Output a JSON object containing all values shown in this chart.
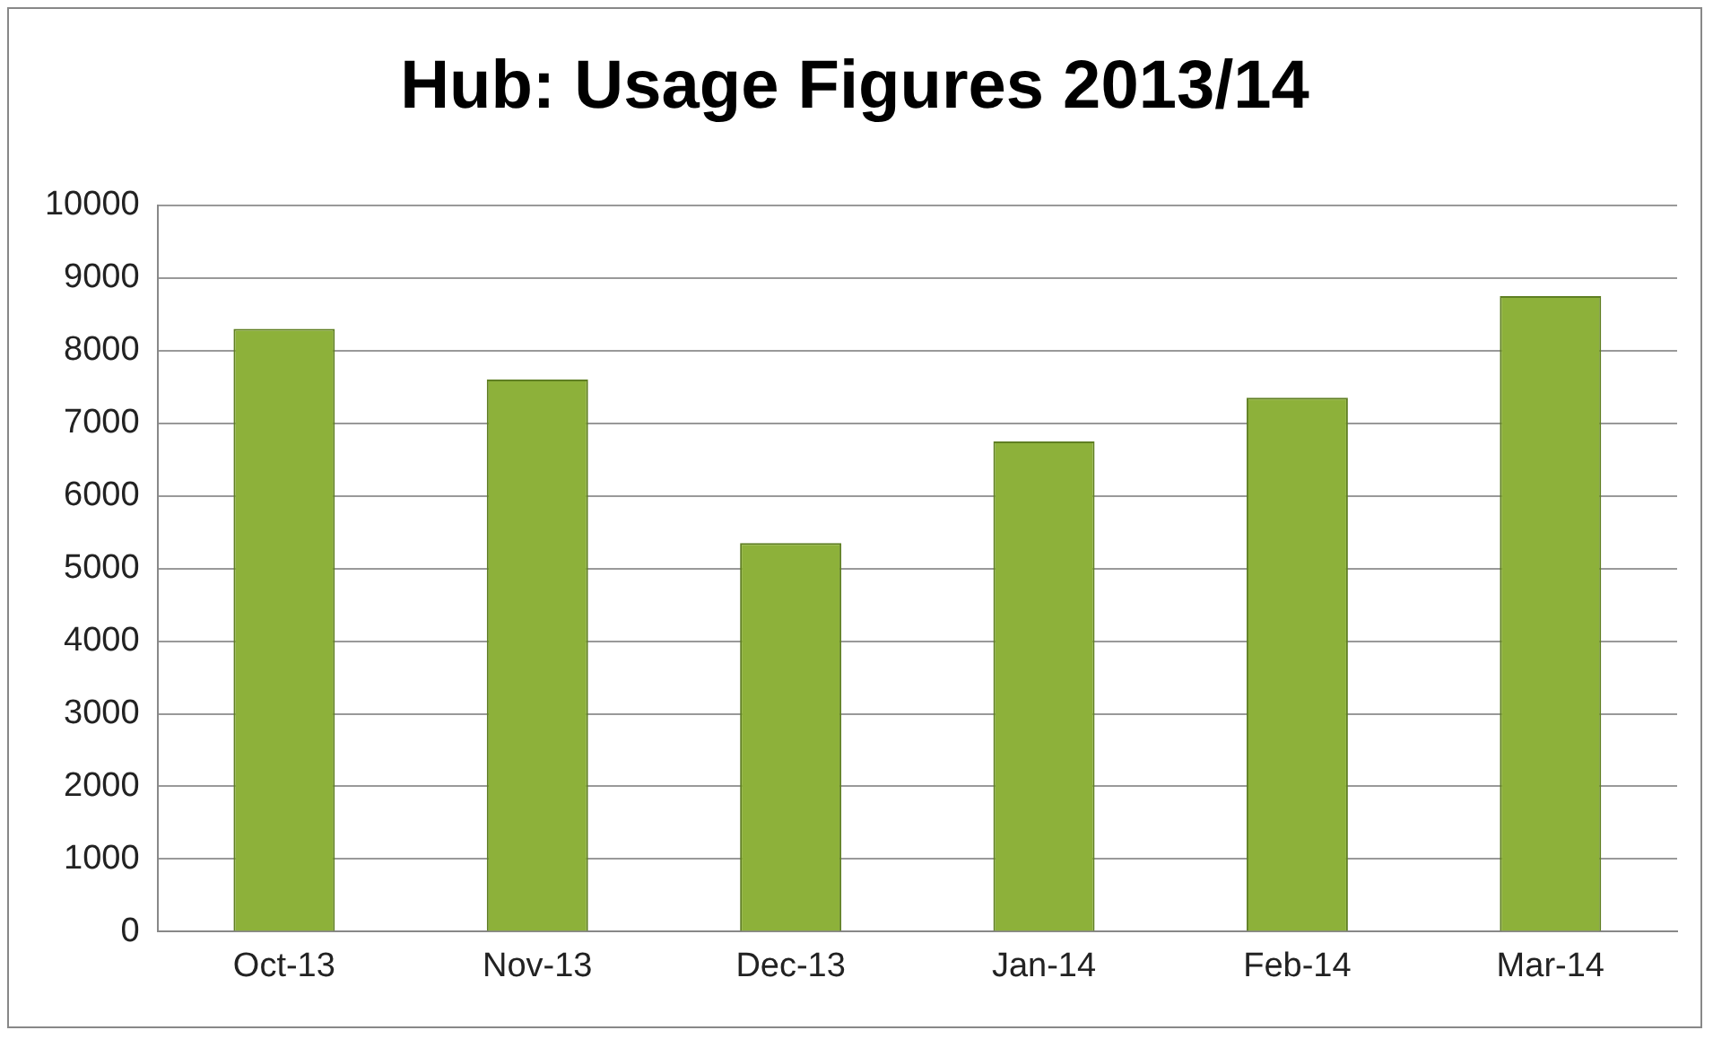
{
  "chart_data": {
    "type": "bar",
    "title": "Hub: Usage Figures 2013/14",
    "categories": [
      "Oct-13",
      "Nov-13",
      "Dec-13",
      "Jan-14",
      "Feb-14",
      "Mar-14"
    ],
    "values": [
      8300,
      7600,
      5350,
      6750,
      7350,
      8750
    ],
    "color": "#8db13a",
    "ylim": [
      0,
      10000
    ],
    "yticks": [
      0,
      1000,
      2000,
      3000,
      4000,
      5000,
      6000,
      7000,
      8000,
      9000,
      10000
    ],
    "grid": "y",
    "legend": false
  }
}
